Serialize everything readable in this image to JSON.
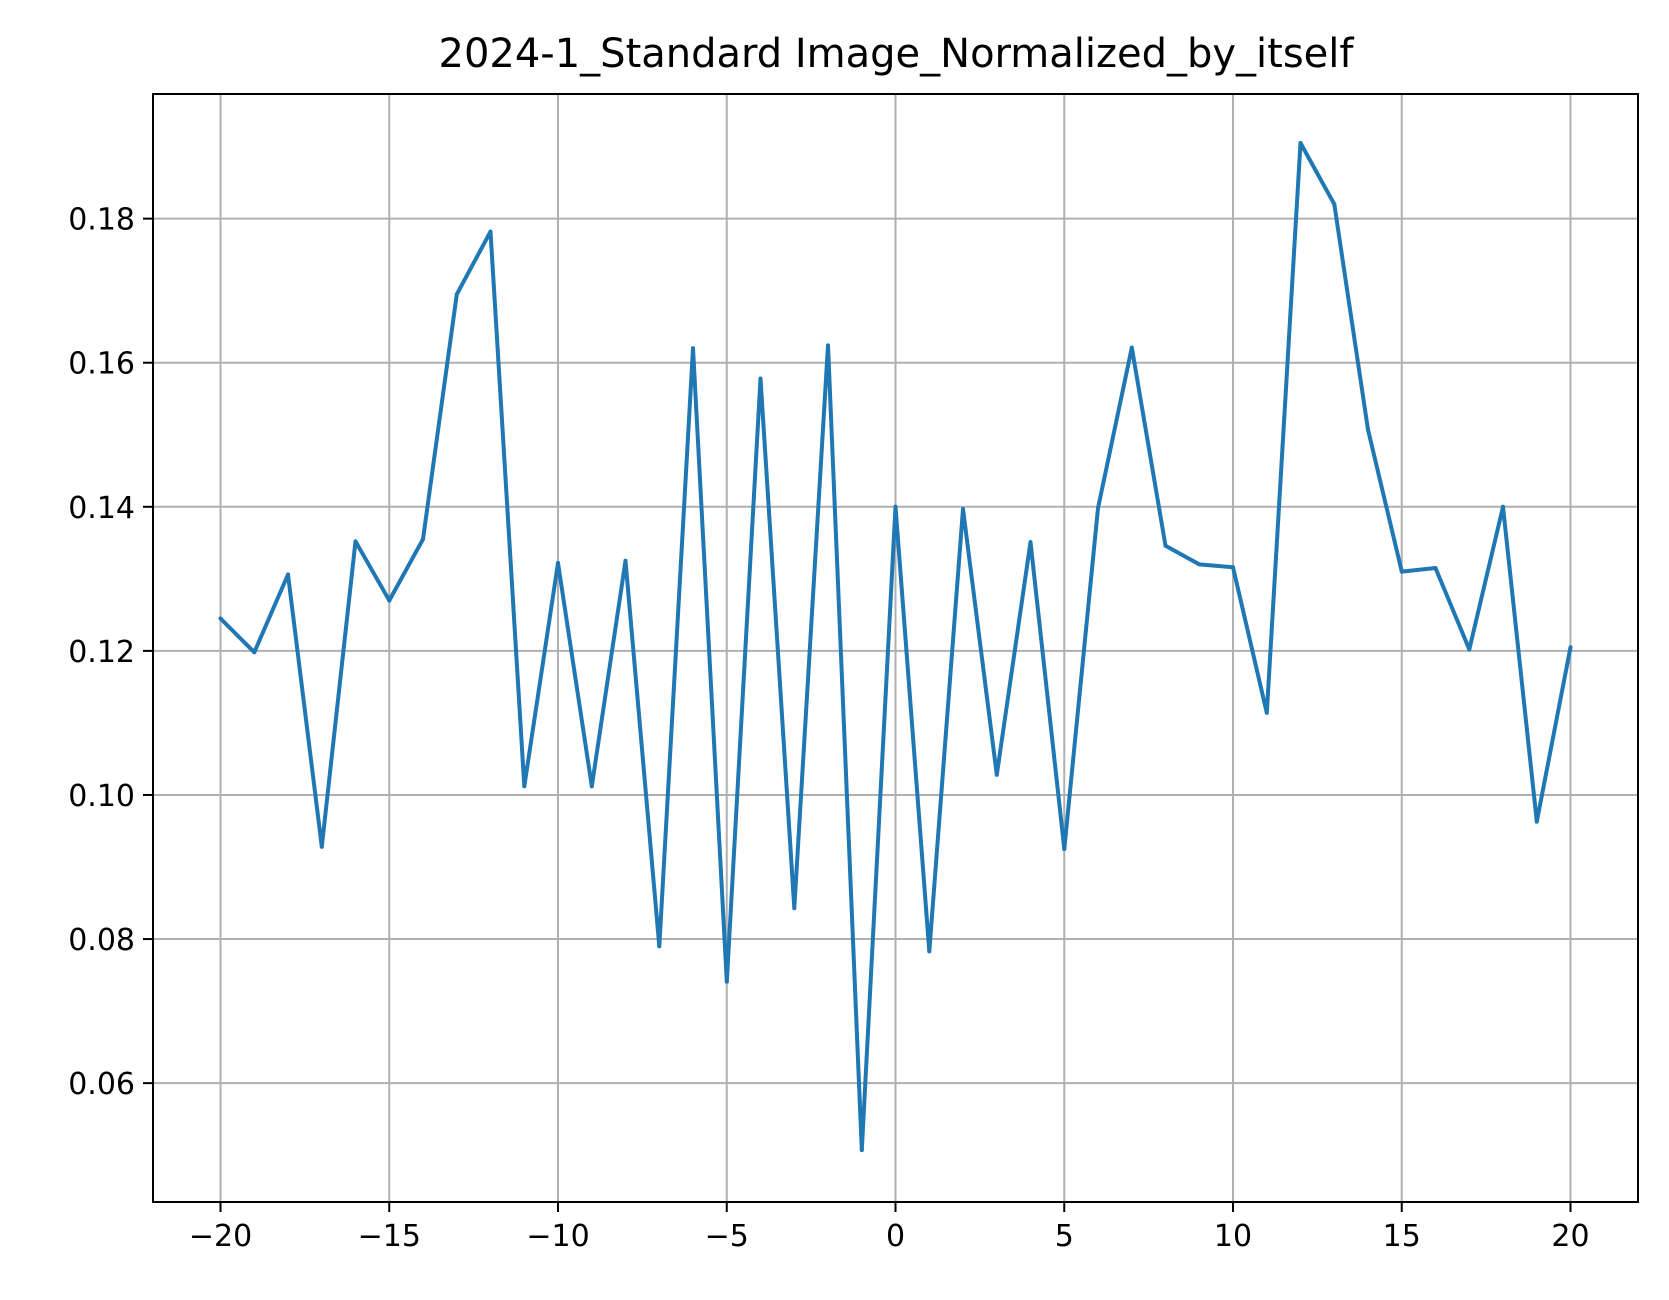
{
  "chart_data": {
    "type": "line",
    "title": "2024-1_Standard Image_Normalized_by_itself",
    "xlabel": "",
    "ylabel": "",
    "xlim": [
      -22,
      22
    ],
    "ylim": [
      0.0435,
      0.1973
    ],
    "grid": true,
    "legend": "none",
    "x_ticks": [
      -20,
      -15,
      -10,
      -5,
      0,
      5,
      10,
      15,
      20
    ],
    "x_tick_labels": [
      "−20",
      "−15",
      "−10",
      "−5",
      "0",
      "5",
      "10",
      "15",
      "20"
    ],
    "y_ticks": [
      0.06,
      0.08,
      0.1,
      0.12,
      0.14,
      0.16,
      0.18
    ],
    "y_tick_labels": [
      "0.06",
      "0.08",
      "0.10",
      "0.12",
      "0.14",
      "0.16",
      "0.18"
    ],
    "x": [
      -20,
      -19,
      -18,
      -17,
      -16,
      -15,
      -14,
      -13,
      -12,
      -11,
      -10,
      -9,
      -8,
      -7,
      -6,
      -5,
      -4,
      -3,
      -2,
      -1,
      0,
      1,
      2,
      3,
      4,
      5,
      6,
      7,
      8,
      9,
      10,
      11,
      12,
      13,
      14,
      15,
      16,
      17,
      18,
      19,
      20
    ],
    "series": [
      {
        "color": "#1f77b4",
        "values": [
          0.1245,
          0.1198,
          0.1306,
          0.0928,
          0.1352,
          0.127,
          0.1355,
          0.1695,
          0.1782,
          0.1012,
          0.1322,
          0.1012,
          0.1325,
          0.079,
          0.162,
          0.0741,
          0.1578,
          0.0843,
          0.1624,
          0.0507,
          0.14,
          0.0783,
          0.1397,
          0.1028,
          0.1351,
          0.0925,
          0.1398,
          0.1621,
          0.1346,
          0.132,
          0.1316,
          0.1114,
          0.1905,
          0.182,
          0.1507,
          0.131,
          0.1315,
          0.1202,
          0.14,
          0.0963,
          0.1205
        ]
      }
    ]
  }
}
